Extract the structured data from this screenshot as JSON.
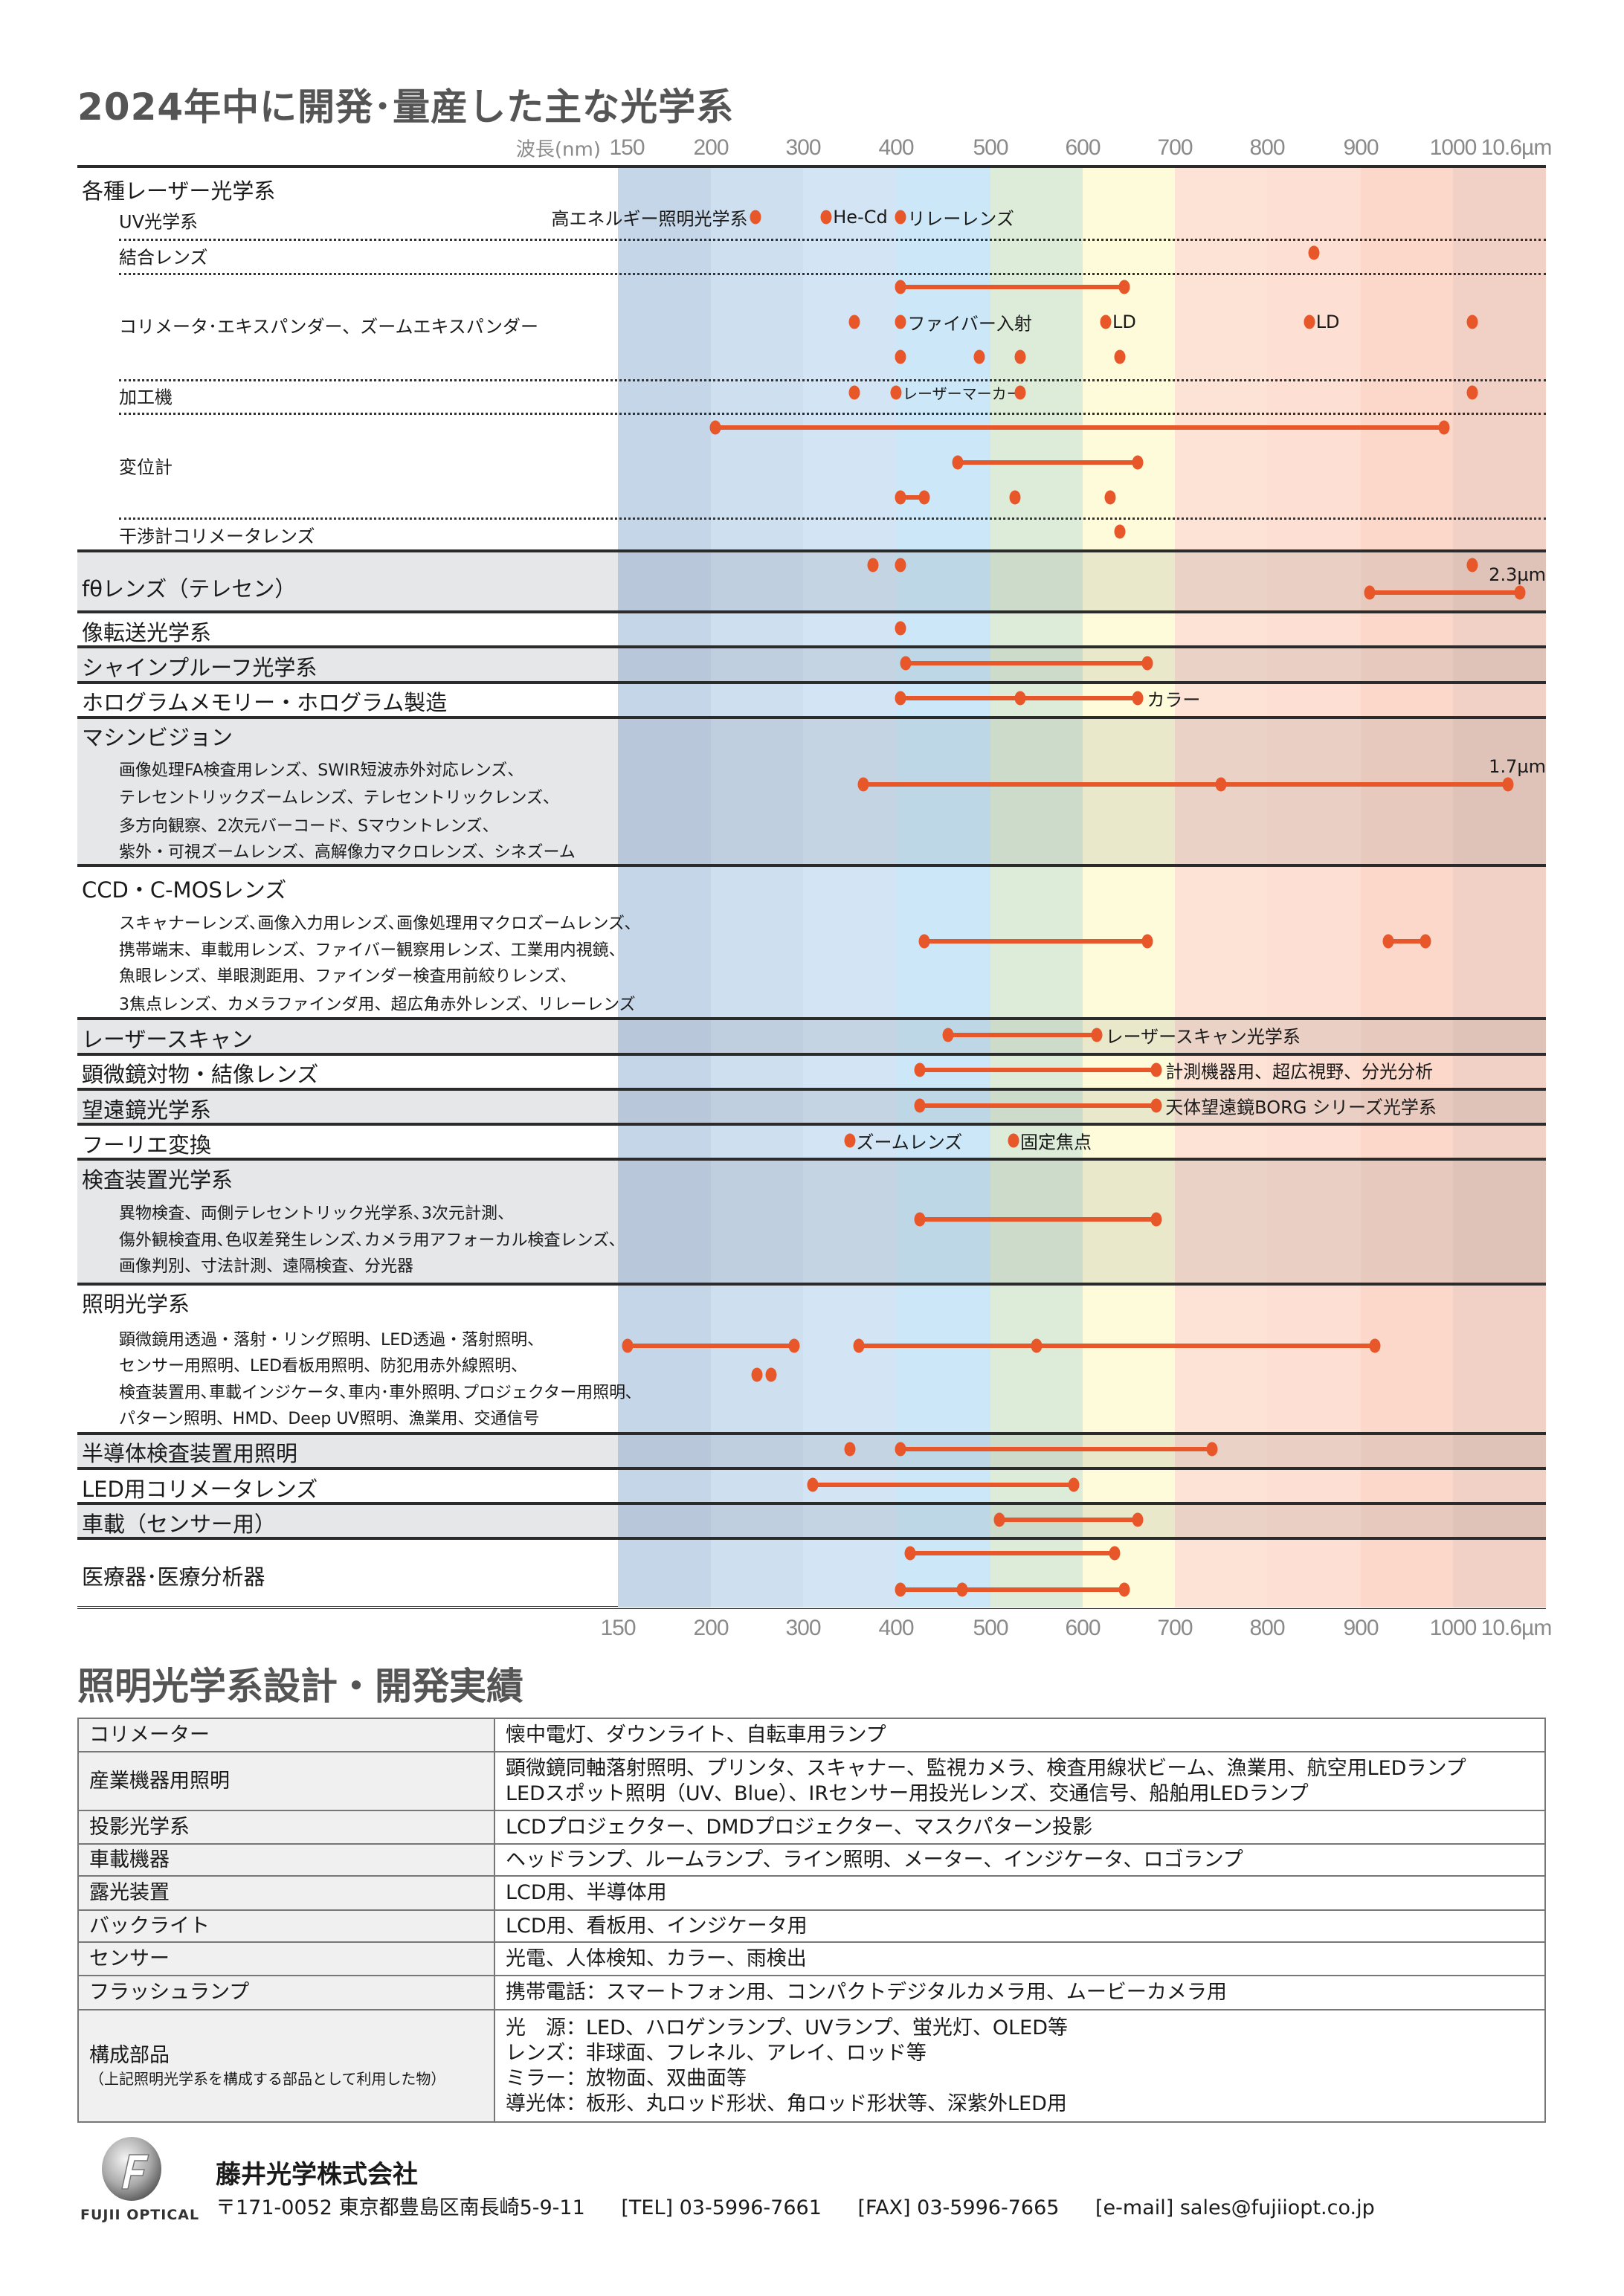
{
  "title": "2024年中に開発･量産した主な光学系",
  "chart_data": {
    "type": "scatter",
    "x_unit_label": "波長(nm)",
    "ticks": [
      "150",
      "200",
      "300",
      "400",
      "500",
      "600",
      "700",
      "800",
      "900",
      "1000",
      "10.6µm"
    ],
    "accent_color": "#e8572a",
    "bands": [
      {
        "from": 150,
        "to": 200,
        "color": "#c6d6e9"
      },
      {
        "from": 200,
        "to": 300,
        "color": "#cedff0"
      },
      {
        "from": 300,
        "to": 400,
        "color": "#d3e5f4"
      },
      {
        "from": 400,
        "to": 500,
        "color": "#cce8f8"
      },
      {
        "from": 500,
        "to": 600,
        "color": "#dcecd8"
      },
      {
        "from": 600,
        "to": 700,
        "color": "#fdfbda"
      },
      {
        "from": 700,
        "to": 800,
        "color": "#fde3d5"
      },
      {
        "from": 800,
        "to": 900,
        "color": "#fddfd3"
      },
      {
        "from": 900,
        "to": 1000,
        "color": "#fbd8ca"
      },
      {
        "from": 1000,
        "to": 10600,
        "color": "#f1d1c5"
      }
    ],
    "sections": [
      {
        "label": "各種レーザー光学系",
        "shaded": false,
        "subrows": [
          {
            "label": "UV光学系",
            "tracks": [
              [
                {
                  "at": 248,
                  "text": "高エネルギー照明光学系",
                  "side": "left"
                },
                {
                  "at": 325,
                  "text": "He-Cd"
                },
                {
                  "at": 405,
                  "text": "リレーレンズ"
                }
              ]
            ]
          },
          {
            "label": "結合レンズ",
            "tracks": [
              [
                {
                  "at": 850
                }
              ]
            ]
          },
          {
            "label": "コリメータ･エキスパンダー、ズームエキスパンダー",
            "tracks": [
              [
                {
                  "range": [
                    405,
                    645
                  ]
                }
              ],
              [
                {
                  "at": 355
                },
                {
                  "at": 405,
                  "text": "ファイバー入射"
                },
                {
                  "at": 625,
                  "text": "LD"
                },
                {
                  "at": 845,
                  "text": "LD"
                },
                {
                  "at": 1064
                }
              ],
              [
                {
                  "at": 405
                },
                {
                  "at": 488
                },
                {
                  "at": 532
                },
                {
                  "at": 640
                }
              ]
            ]
          },
          {
            "label": "加工機",
            "tracks": [
              [
                {
                  "at": 355
                },
                {
                  "at": 400,
                  "text": "レーザーマーカー",
                  "small": true
                },
                {
                  "at": 532
                },
                {
                  "at": 1064
                }
              ]
            ]
          },
          {
            "label": "変位計",
            "tracks": [
              [
                {
                  "range": [
                    205,
                    990
                  ]
                }
              ],
              [
                {
                  "range": [
                    465,
                    660
                  ]
                }
              ],
              [
                {
                  "range": [
                    405,
                    430
                  ]
                },
                {
                  "at": 527
                },
                {
                  "at": 630
                }
              ]
            ]
          },
          {
            "label": "干渉計コリメータレンズ",
            "tracks": [
              [
                {
                  "at": 640
                }
              ]
            ]
          }
        ]
      },
      {
        "label": "fθレンズ（テレセン）",
        "shaded": true,
        "tracks": [
          [
            {
              "at": 375
            },
            {
              "at": 405
            },
            {
              "at": 1064
            }
          ],
          [
            {
              "range": [
                910,
                2300
              ],
              "end_text": "2.3µm"
            }
          ]
        ]
      },
      {
        "label": "像転送光学系",
        "shaded": false,
        "tracks": [
          [
            {
              "at": 405
            }
          ]
        ]
      },
      {
        "label": "シャインプルーフ光学系",
        "shaded": true,
        "tracks": [
          [
            {
              "range": [
                410,
                670
              ]
            }
          ]
        ]
      },
      {
        "label": "ホログラムメモリー・ホログラム製造",
        "shaded": false,
        "tracks": [
          [
            {
              "range": [
                405,
                532,
                660
              ],
              "text": "カラー"
            }
          ]
        ]
      },
      {
        "label": "マシンビジョン",
        "shaded": true,
        "description": [
          "画像処理FA検査用レンズ、SWIR短波赤外対応レンズ、",
          "テレセントリックズームレンズ、テレセントリックレンズ、",
          "多方向観察、2次元バーコード、Sマウントレンズ、",
          "紫外・可視ズームレンズ、高解像力マクロレンズ、シネズーム"
        ],
        "tracks": [
          [
            {
              "range": [
                365,
                750,
                1700
              ],
              "end_text": "1.7µm"
            }
          ]
        ]
      },
      {
        "label": "CCD・C-MOSレンズ",
        "shaded": false,
        "description": [
          "スキャナーレンズ､画像入力用レンズ､画像処理用マクロズームレンズ､",
          "携帯端末、車載用レンズ、ファイバー観察用レンズ、工業用内視鏡、",
          "魚眼レンズ、単眼測距用、ファインダー検査用前絞りレンズ、",
          "3焦点レンズ、カメラファインダ用、超広角赤外レンズ、リレーレンズ"
        ],
        "tracks": [
          [
            {
              "range": [
                430,
                670
              ]
            },
            {
              "range": [
                930,
                970
              ]
            }
          ]
        ]
      },
      {
        "label": "レーザースキャン",
        "shaded": true,
        "tracks": [
          [
            {
              "range": [
                455,
                615
              ],
              "text": "レーザースキャン光学系"
            }
          ]
        ]
      },
      {
        "label": "顕微鏡対物・結像レンズ",
        "shaded": false,
        "tracks": [
          [
            {
              "range": [
                425,
                680
              ],
              "text": "計測機器用、超広視野、分光分析"
            }
          ]
        ]
      },
      {
        "label": "望遠鏡光学系",
        "shaded": true,
        "tracks": [
          [
            {
              "range": [
                425,
                680
              ],
              "text": "天体望遠鏡BORG シリーズ光学系"
            }
          ]
        ]
      },
      {
        "label": "フーリエ変換",
        "shaded": false,
        "tracks": [
          [
            {
              "at": 350,
              "text": "ズームレンズ"
            },
            {
              "at": 525,
              "text": "固定焦点"
            }
          ]
        ]
      },
      {
        "label": "検査装置光学系",
        "shaded": true,
        "description": [
          "異物検査、両側テレセントリック光学系､3次元計測、",
          "傷外観検査用､色収差発生レンズ､カメラ用アフォーカル検査レンズ､",
          "画像判別、寸法計測、遠隔検査、分光器"
        ],
        "tracks": [
          [
            {
              "range": [
                425,
                680
              ]
            }
          ]
        ]
      },
      {
        "label": "照明光学系",
        "shaded": false,
        "description": [
          "顕微鏡用透過・落射・リング照明、LED透過・落射照明、",
          "センサー用照明、LED看板用照明、防犯用赤外線照明、",
          "検査装置用､車載インジケータ､車内･車外照明､プロジェクター用照明､",
          "パターン照明、HMD、Deep UV照明、漁業用、交通信号"
        ],
        "tracks": [
          [
            {
              "range": [
                155,
                290
              ]
            },
            {
              "range": [
                360,
                550,
                915
              ]
            }
          ],
          [
            {
              "at": 250
            },
            {
              "at": 265
            }
          ]
        ]
      },
      {
        "label": "半導体検査装置用照明",
        "shaded": true,
        "tracks": [
          [
            {
              "at": 350
            },
            {
              "range": [
                405,
                740
              ]
            }
          ]
        ]
      },
      {
        "label": "LED用コリメータレンズ",
        "shaded": false,
        "tracks": [
          [
            {
              "range": [
                310,
                590
              ]
            }
          ]
        ]
      },
      {
        "label": "車載（センサー用）",
        "shaded": true,
        "tracks": [
          [
            {
              "range": [
                510,
                660
              ]
            }
          ]
        ]
      },
      {
        "label": "医療器･医療分析器",
        "shaded": false,
        "tracks": [
          [
            {
              "range": [
                415,
                635
              ]
            }
          ],
          [
            {
              "range": [
                405,
                470,
                645
              ]
            }
          ]
        ]
      }
    ]
  },
  "works": {
    "title": "照明光学系設計・開発実績",
    "rows": [
      {
        "key": "コリメーター",
        "values": [
          "懐中電灯、ダウンライト、自転車用ランプ"
        ]
      },
      {
        "key": "産業機器用照明",
        "values": [
          "顕微鏡同軸落射照明、プリンタ、スキャナー、監視カメラ、検査用線状ビーム、漁業用、航空用LEDランプ",
          "LEDスポット照明（UV、Blue）、IRセンサー用投光レンズ、交通信号、船舶用LEDランプ"
        ]
      },
      {
        "key": "投影光学系",
        "values": [
          "LCDプロジェクター、DMDプロジェクター、マスクパターン投影"
        ]
      },
      {
        "key": "車載機器",
        "values": [
          "ヘッドランプ、ルームランプ、ライン照明、メーター、インジケータ、ロゴランプ"
        ]
      },
      {
        "key": "露光装置",
        "values": [
          "LCD用、半導体用"
        ]
      },
      {
        "key": "バックライト",
        "values": [
          "LCD用、看板用、インジケータ用"
        ]
      },
      {
        "key": "センサー",
        "values": [
          "光電、人体検知、カラー、雨検出"
        ]
      },
      {
        "key": "フラッシュランプ",
        "values": [
          "携帯電話：スマートフォン用、コンパクトデジタルカメラ用、ムービーカメラ用"
        ]
      },
      {
        "key": "構成部品",
        "note": "（上記照明光学系を構成する部品として利用した物）",
        "values": [
          "光　源：LED、ハロゲンランプ、UVランプ、蛍光灯、OLED等",
          "レンズ：非球面、フレネル、アレイ、ロッド等",
          "ミラー：放物面、双曲面等",
          "導光体：板形、丸ロッド形状、角ロッド形状等、深紫外LED用"
        ]
      }
    ]
  },
  "footer": {
    "logo_text": "FUJII OPTICAL",
    "company": "藤井光学株式会社",
    "address": "〒171-0052 東京都豊島区南長崎5-9-11",
    "tel": "[TEL] 03-5996-7661",
    "fax": "[FAX] 03-5996-7665",
    "email": "[e-mail] sales@fujiiopt.co.jp"
  }
}
